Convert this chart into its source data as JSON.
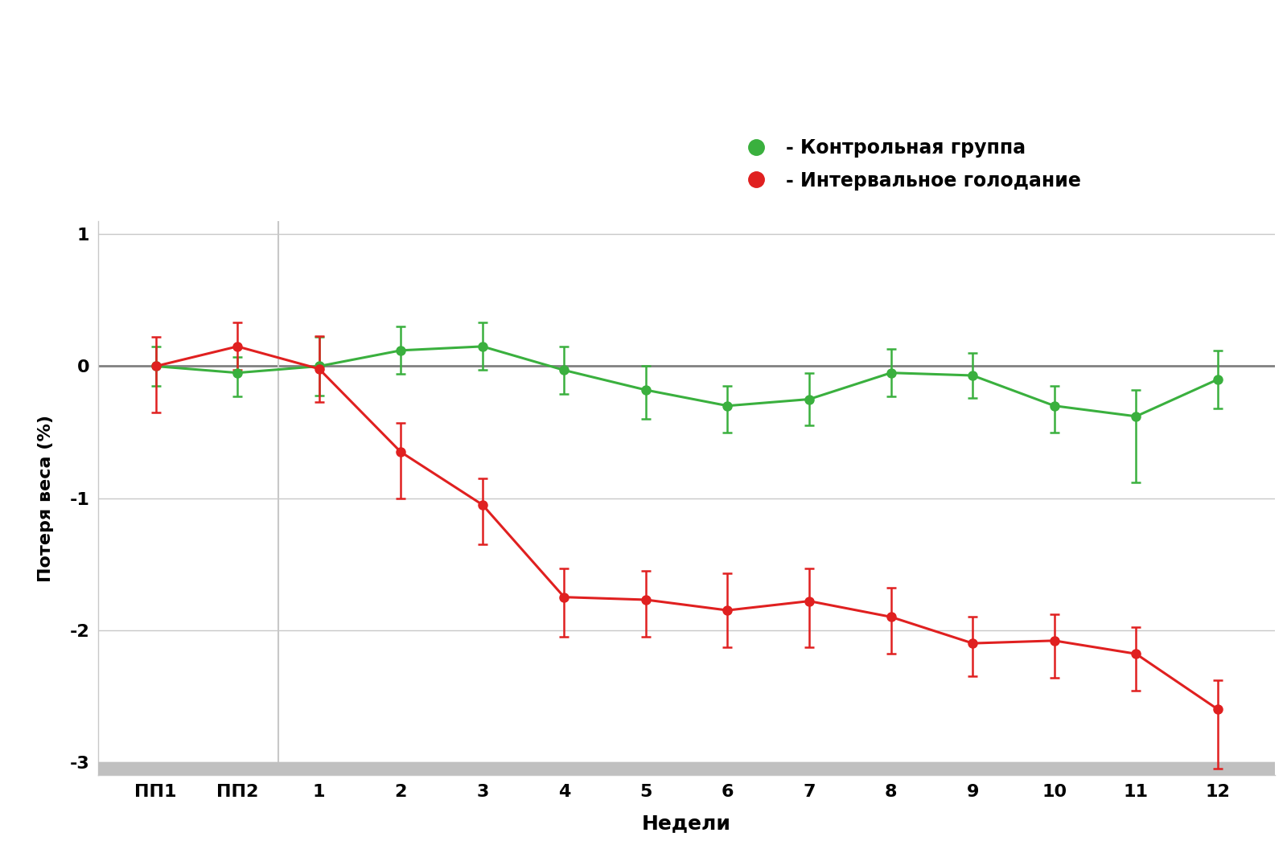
{
  "x_labels": [
    "ПП1",
    "ПП2",
    "1",
    "2",
    "3",
    "4",
    "5",
    "6",
    "7",
    "8",
    "9",
    "10",
    "11",
    "12"
  ],
  "x_positions": [
    0,
    1,
    2,
    3,
    4,
    5,
    6,
    7,
    8,
    9,
    10,
    11,
    12,
    13
  ],
  "green_y": [
    0.0,
    -0.05,
    0.0,
    0.12,
    0.15,
    -0.03,
    -0.18,
    -0.3,
    -0.25,
    -0.05,
    -0.07,
    -0.3,
    -0.38,
    -0.1
  ],
  "green_err_upper": [
    0.15,
    0.12,
    0.22,
    0.18,
    0.18,
    0.18,
    0.18,
    0.15,
    0.2,
    0.18,
    0.17,
    0.15,
    0.2,
    0.22
  ],
  "green_err_lower": [
    0.15,
    0.18,
    0.22,
    0.18,
    0.18,
    0.18,
    0.22,
    0.2,
    0.2,
    0.18,
    0.17,
    0.2,
    0.5,
    0.22
  ],
  "red_y": [
    0.0,
    0.15,
    -0.02,
    -0.65,
    -1.05,
    -1.75,
    -1.77,
    -1.85,
    -1.78,
    -1.9,
    -2.1,
    -2.08,
    -2.18,
    -2.6
  ],
  "red_err_upper": [
    0.22,
    0.18,
    0.25,
    0.22,
    0.2,
    0.22,
    0.22,
    0.28,
    0.25,
    0.22,
    0.2,
    0.2,
    0.2,
    0.22
  ],
  "red_err_lower": [
    0.35,
    0.18,
    0.25,
    0.35,
    0.3,
    0.3,
    0.28,
    0.28,
    0.35,
    0.28,
    0.25,
    0.28,
    0.28,
    0.45
  ],
  "vline_x": 1.5,
  "ylim": [
    -3.1,
    1.1
  ],
  "yticks": [
    1,
    0,
    -1,
    -2,
    -3
  ],
  "ylabel": "Потеря веса (%)",
  "xlabel": "Недели",
  "legend_green": "- Контрольная группа",
  "legend_red": "- Интервальное голодание",
  "green_color": "#3ab03e",
  "red_color": "#e02020",
  "background_color": "#ffffff",
  "plot_bg_color": "#ffffff",
  "grid_color": "#c8c8c8",
  "zero_line_color": "#808080",
  "bottom_bar_color": "#c0c0c0",
  "vline_color": "#c8c8c8"
}
